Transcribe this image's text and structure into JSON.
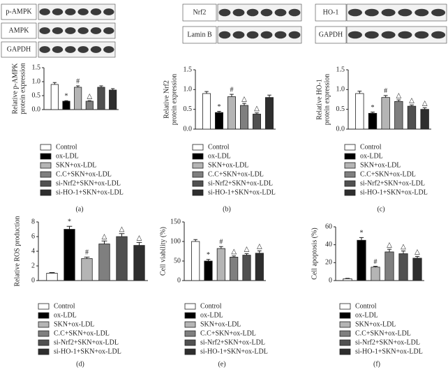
{
  "chart_data": [
    {
      "type": "bar",
      "caption": "(a)",
      "blot_labels": [
        "p-AMPK",
        "AMPK",
        "GAPDH"
      ],
      "ylabel": [
        "Relative p-AMPK",
        "protein expression"
      ],
      "categories": [
        "Control",
        "ox-LDL",
        "SKN+ox-LDL",
        "C.C+SKN+ox-LDL",
        "si-Nrf2+SKN+ox-LDL",
        "si-HO-1+SKN+ox-LDL"
      ],
      "colors": [
        "#ffffff",
        "#000000",
        "#b5b5b5",
        "#7f7f7f",
        "#505050",
        "#2e2e2e"
      ],
      "values": [
        0.9,
        0.3,
        0.8,
        0.3,
        0.8,
        0.7
      ],
      "errors": [
        0.07,
        0.02,
        0.05,
        0.02,
        0.05,
        0.05
      ],
      "annotations": [
        null,
        "*",
        "#",
        "△",
        null,
        null
      ],
      "ylim": [
        0,
        1.5
      ],
      "yticks": [
        {
          "value": 0,
          "label": "0.0"
        },
        0.5,
        {
          "value": 1,
          "label": "1.0"
        },
        1.5
      ]
    },
    {
      "type": "bar",
      "caption": "(b)",
      "blot_labels": [
        "Nrf2",
        "Lamin B"
      ],
      "ylabel": [
        "Relative Nrf2",
        "protein expression"
      ],
      "categories": [
        "Control",
        "ox-LDL",
        "SKN+ox-LDL",
        "C.C+SKN+ox-LDL",
        "si-Nrf2+SKN+ox-LDL",
        "si-HO-1+SKN+ox-LDL"
      ],
      "colors": [
        "#ffffff",
        "#000000",
        "#b5b5b5",
        "#7f7f7f",
        "#505050",
        "#2e2e2e"
      ],
      "values": [
        0.9,
        0.42,
        0.82,
        0.6,
        0.38,
        0.8
      ],
      "errors": [
        0.05,
        0.03,
        0.06,
        0.05,
        0.03,
        0.06
      ],
      "annotations": [
        null,
        "*",
        "#",
        "△",
        "△",
        null
      ],
      "ylim": [
        0,
        1.5
      ],
      "yticks": [
        {
          "value": 0,
          "label": "0.0"
        },
        0.5,
        {
          "value": 1,
          "label": "1.0"
        },
        1.5
      ]
    },
    {
      "type": "bar",
      "caption": "(c)",
      "blot_labels": [
        "HO-1",
        "GAPDH"
      ],
      "ylabel": [
        "Relative HO-1",
        "protein expression"
      ],
      "categories": [
        "Control",
        "ox-LDL",
        "SKN+ox-LDL",
        "C.C+SKN+ox-LDL",
        "si-Nrf2+SKN+ox-LDL",
        "si-HO-1+SKN+ox-LDL"
      ],
      "colors": [
        "#ffffff",
        "#000000",
        "#b5b5b5",
        "#7f7f7f",
        "#505050",
        "#2e2e2e"
      ],
      "values": [
        0.9,
        0.4,
        0.8,
        0.7,
        0.58,
        0.5
      ],
      "errors": [
        0.06,
        0.03,
        0.05,
        0.04,
        0.03,
        0.04
      ],
      "annotations": [
        null,
        "*",
        "#",
        "△",
        "△",
        "△"
      ],
      "ylim": [
        0,
        1.5
      ],
      "yticks": [
        {
          "value": 0,
          "label": "0.0"
        },
        0.5,
        {
          "value": 1,
          "label": "1.0"
        },
        1.5
      ]
    },
    {
      "type": "bar",
      "caption": "(d)",
      "ylabel": [
        "Relative ROS production"
      ],
      "categories": [
        "Control",
        "ox-LDL",
        "SKN+ox-LDL",
        "C.C+SKN+ox-LDL",
        "si-Nrf2+SKN+ox-LDL",
        "si-HO-1+SKN+ox-LDL"
      ],
      "colors": [
        "#ffffff",
        "#000000",
        "#b5b5b5",
        "#7f7f7f",
        "#505050",
        "#2e2e2e"
      ],
      "values": [
        1,
        7,
        3,
        5,
        6,
        4.8
      ],
      "errors": [
        0.1,
        0.4,
        0.2,
        0.4,
        0.4,
        0.4
      ],
      "annotations": [
        null,
        "*",
        "#",
        "△",
        "△",
        "△"
      ],
      "ylim": [
        0,
        8
      ],
      "yticks": [
        0,
        2,
        4,
        6,
        8
      ]
    },
    {
      "type": "bar",
      "caption": "(e)",
      "ylabel": [
        "Cell viability (%)"
      ],
      "categories": [
        "Control",
        "ox-LDL",
        "SKN+ox-LDL",
        "C.C+SKN+ox-LDL",
        "si-Nrf2+SKN+ox-LDL",
        "si-HO-1+SKN+ox-LDL"
      ],
      "colors": [
        "#ffffff",
        "#000000",
        "#b5b5b5",
        "#7f7f7f",
        "#505050",
        "#2e2e2e"
      ],
      "values": [
        100,
        50,
        82,
        60,
        65,
        70
      ],
      "errors": [
        5,
        4,
        5,
        3,
        4,
        6
      ],
      "annotations": [
        null,
        "*",
        "#",
        "△",
        "△",
        "△"
      ],
      "ylim": [
        0,
        150
      ],
      "yticks": [
        0,
        50,
        100,
        150
      ]
    },
    {
      "type": "bar",
      "caption": "(f)",
      "ylabel": [
        "Cell apoptosis (%)"
      ],
      "categories": [
        "Control",
        "ox-LDL",
        "SKN+ox-LDL",
        "C.C+SKN+ox-LDL",
        "si-Nrf2+SKN+ox-LDL",
        "si-HO-1+SKN+ox-LDL"
      ],
      "colors": [
        "#ffffff",
        "#000000",
        "#b5b5b5",
        "#7f7f7f",
        "#505050",
        "#2e2e2e"
      ],
      "values": [
        2,
        45,
        15,
        32,
        30,
        25
      ],
      "errors": [
        0.5,
        3,
        1,
        3,
        3,
        2
      ],
      "annotations": [
        null,
        "*",
        "#",
        "△",
        "△",
        "△"
      ],
      "ylim": [
        0,
        60
      ],
      "yticks": [
        0,
        20,
        40,
        60
      ]
    }
  ]
}
